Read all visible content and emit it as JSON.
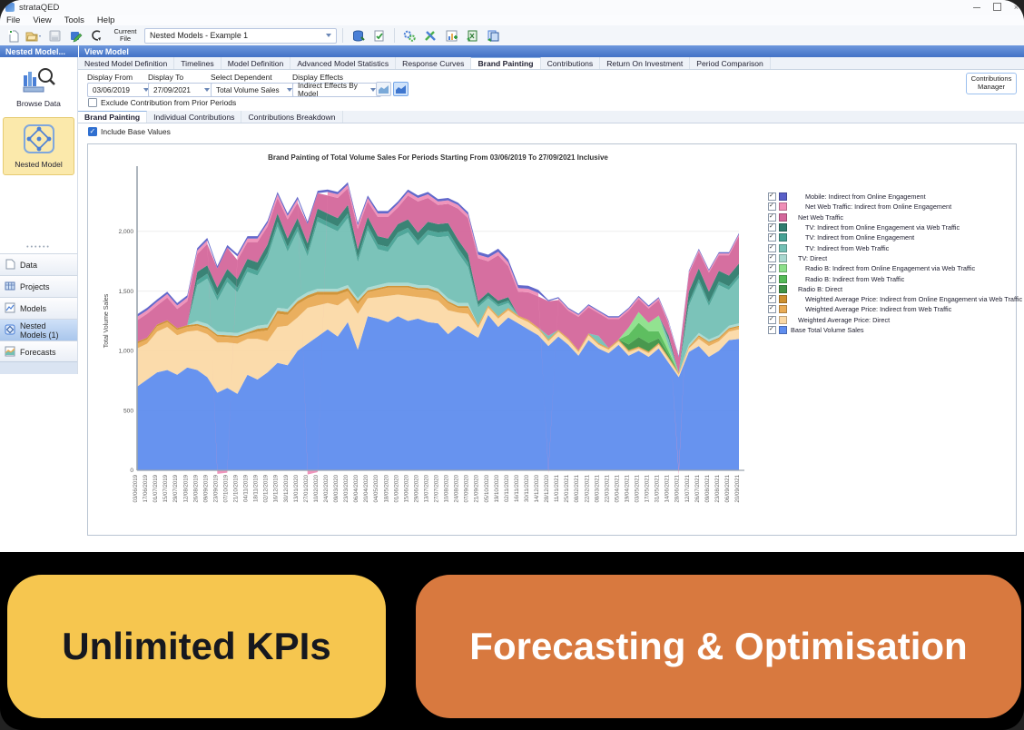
{
  "window": {
    "title": "strataQED",
    "menu": [
      "File",
      "View",
      "Tools",
      "Help"
    ]
  },
  "toolbar": {
    "current_file_label": "Current File",
    "file_combo": "Nested Models - Example 1"
  },
  "captions": {
    "left": "Nested Model...",
    "right": "View Model"
  },
  "sidebar": {
    "tools": [
      {
        "label": "Browse Data",
        "icon": "browse-data",
        "selected": false
      },
      {
        "label": "Nested Model",
        "icon": "nested-model",
        "selected": true
      }
    ],
    "nav": [
      {
        "label": "Data",
        "icon": "doc",
        "selected": false
      },
      {
        "label": "Projects",
        "icon": "grid",
        "selected": false
      },
      {
        "label": "Models",
        "icon": "chart",
        "selected": false
      },
      {
        "label": "Nested Models (1)",
        "icon": "nested",
        "selected": true
      },
      {
        "label": "Forecasts",
        "icon": "forecast",
        "selected": false
      }
    ]
  },
  "tabs": {
    "items": [
      "Nested Model Definition",
      "Timelines",
      "Model Definition",
      "Advanced Model Statistics",
      "Response Curves",
      "Brand Painting",
      "Contributions",
      "Return On Investment",
      "Period Comparison"
    ],
    "active": "Brand Painting"
  },
  "controls": {
    "display_from": {
      "label": "Display From",
      "value": "03/06/2019"
    },
    "display_to": {
      "label": "Display To",
      "value": "27/09/2021"
    },
    "select_dependent": {
      "label": "Select Dependent",
      "value": "Total Volume Sales"
    },
    "display_effects": {
      "label": "Display Effects",
      "value": "Indirect Effects By Model"
    },
    "exclude_label": "Exclude Contribution from Prior Periods",
    "manager_label": "Contributions Manager"
  },
  "subtabs": {
    "items": [
      "Brand Painting",
      "Individual Contributions",
      "Contributions Breakdown"
    ],
    "active": "Brand Painting"
  },
  "include_base_label": "Include Base Values",
  "chart_data": {
    "type": "area",
    "stacked": true,
    "title": "Brand Painting of Total Volume Sales For Periods Starting From 03/06/2019 To 27/09/2021 Inclusive",
    "ylabel": "Total Volume Sales",
    "ylim": [
      0,
      2500
    ],
    "yticks": [
      {
        "v": 0,
        "label": "0"
      },
      {
        "v": 500,
        "label": "500"
      },
      {
        "v": 1000,
        "label": "1,000"
      },
      {
        "v": 1500,
        "label": "1,500"
      },
      {
        "v": 2000,
        "label": "2,000"
      }
    ],
    "grid": true,
    "legend_position": "right",
    "x": [
      "03/06/2019",
      "17/06/2019",
      "01/07/2019",
      "15/07/2019",
      "29/07/2019",
      "12/08/2019",
      "26/08/2019",
      "09/09/2019",
      "23/09/2019",
      "07/10/2019",
      "21/10/2019",
      "04/11/2019",
      "18/11/2019",
      "02/12/2019",
      "16/12/2019",
      "30/12/2019",
      "13/01/2020",
      "27/01/2020",
      "10/02/2020",
      "24/02/2020",
      "09/03/2020",
      "23/03/2020",
      "06/04/2020",
      "20/04/2020",
      "04/05/2020",
      "18/05/2020",
      "01/06/2020",
      "15/06/2020",
      "29/06/2020",
      "13/07/2020",
      "27/07/2020",
      "10/08/2020",
      "24/08/2020",
      "07/09/2020",
      "21/09/2020",
      "05/10/2020",
      "19/10/2020",
      "02/11/2020",
      "16/11/2020",
      "30/11/2020",
      "14/12/2020",
      "28/12/2020",
      "11/01/2021",
      "25/01/2021",
      "08/02/2021",
      "22/02/2021",
      "08/03/2021",
      "22/03/2021",
      "05/04/2021",
      "19/04/2021",
      "03/05/2021",
      "17/05/2021",
      "31/05/2021",
      "14/06/2021",
      "28/06/2021",
      "12/07/2021",
      "26/07/2021",
      "09/08/2021",
      "23/08/2021",
      "06/09/2021",
      "20/09/2021"
    ],
    "series": [
      {
        "key": "base",
        "name": "Base Total Volume Sales",
        "color": "#5f8dee",
        "values": [
          700,
          760,
          820,
          840,
          800,
          860,
          840,
          780,
          650,
          690,
          640,
          800,
          760,
          820,
          900,
          880,
          1000,
          1060,
          1120,
          1180,
          1120,
          1240,
          1010,
          1290,
          1270,
          1240,
          1290,
          1250,
          1270,
          1240,
          1230,
          1140,
          1210,
          1160,
          1110,
          1300,
          1200,
          1280,
          1230,
          1180,
          1130,
          1040,
          1120,
          1050,
          960,
          1090,
          1020,
          980,
          1050,
          960,
          1000,
          950,
          1020,
          900,
          780,
          990,
          1040,
          950,
          1000,
          1090,
          1100
        ]
      },
      {
        "key": "wap_direct",
        "name": "Weighted Average Price: Direct",
        "color": "#fbd9a6",
        "values": [
          320,
          300,
          340,
          360,
          330,
          300,
          330,
          360,
          420,
          380,
          420,
          300,
          340,
          260,
          300,
          330,
          280,
          300,
          260,
          220,
          260,
          200,
          300,
          150,
          180,
          220,
          180,
          210,
          180,
          200,
          190,
          200,
          110,
          150,
          80,
          60,
          70,
          60,
          50,
          60,
          50,
          40,
          40,
          40,
          30,
          40,
          30,
          30,
          30,
          30,
          20,
          30,
          30,
          30,
          20,
          30,
          60,
          90,
          80,
          70,
          80
        ]
      },
      {
        "key": "wap_web",
        "name": "Weighted Average Price: Indirect from Web Traffic",
        "color": "#e9ab55",
        "values": [
          40,
          35,
          45,
          40,
          45,
          40,
          40,
          45,
          50,
          45,
          50,
          40,
          60,
          90,
          110,
          90,
          110,
          80,
          90,
          70,
          90,
          60,
          80,
          50,
          60,
          70,
          60,
          70,
          60,
          70,
          60,
          60,
          40,
          50,
          20,
          15,
          15,
          15,
          10,
          15,
          10,
          10,
          10,
          10,
          10,
          10,
          10,
          10,
          10,
          10,
          10,
          10,
          10,
          10,
          10,
          10,
          20,
          25,
          20,
          20,
          20
        ]
      },
      {
        "key": "wap_oe_web",
        "name": "Weighted Average Price: Indirect from Online Engagement via Web Traffic",
        "color": "#cd8f2f",
        "values": [
          15,
          15,
          15,
          15,
          15,
          15,
          15,
          15,
          15,
          15,
          15,
          15,
          25,
          25,
          25,
          25,
          25,
          25,
          25,
          25,
          25,
          25,
          25,
          15,
          15,
          15,
          15,
          15,
          15,
          15,
          15,
          15,
          15,
          15,
          5,
          5,
          5,
          5,
          5,
          5,
          5,
          5,
          5,
          5,
          5,
          5,
          5,
          5,
          5,
          5,
          5,
          5,
          5,
          5,
          5,
          5,
          10,
          10,
          10,
          10,
          10
        ]
      },
      {
        "key": "radio_direct",
        "name": "Radio B: Direct",
        "color": "#3f9245",
        "values": [
          0,
          0,
          0,
          0,
          0,
          0,
          0,
          0,
          0,
          0,
          0,
          0,
          0,
          0,
          0,
          0,
          0,
          0,
          0,
          0,
          0,
          0,
          0,
          0,
          0,
          0,
          0,
          0,
          0,
          0,
          0,
          0,
          0,
          0,
          0,
          0,
          0,
          0,
          0,
          0,
          0,
          0,
          0,
          0,
          0,
          0,
          0,
          0,
          0,
          50,
          80,
          70,
          40,
          20,
          0,
          0,
          0,
          0,
          0,
          0,
          0
        ]
      },
      {
        "key": "radio_web",
        "name": "Radio B: Indirect from Web Traffic",
        "color": "#55bb57",
        "values": [
          0,
          0,
          0,
          0,
          0,
          0,
          0,
          0,
          0,
          0,
          0,
          0,
          0,
          0,
          0,
          0,
          0,
          0,
          0,
          0,
          0,
          0,
          0,
          0,
          0,
          0,
          0,
          0,
          0,
          0,
          0,
          0,
          0,
          0,
          0,
          0,
          0,
          0,
          0,
          0,
          0,
          0,
          0,
          0,
          0,
          0,
          0,
          0,
          0,
          80,
          120,
          100,
          60,
          30,
          0,
          0,
          0,
          0,
          0,
          0,
          0
        ]
      },
      {
        "key": "radio_oe_web",
        "name": "Radio B: Indirect from Online Engagement via Web Traffic",
        "color": "#8ce08a",
        "values": [
          0,
          0,
          0,
          0,
          0,
          0,
          0,
          0,
          0,
          0,
          0,
          0,
          0,
          0,
          0,
          0,
          0,
          0,
          0,
          0,
          0,
          0,
          0,
          0,
          0,
          0,
          0,
          0,
          0,
          0,
          0,
          0,
          0,
          0,
          0,
          0,
          0,
          0,
          0,
          0,
          0,
          0,
          0,
          0,
          0,
          0,
          0,
          0,
          0,
          60,
          90,
          70,
          130,
          40,
          0,
          0,
          0,
          0,
          0,
          0,
          0
        ]
      },
      {
        "key": "tv_direct",
        "name": "TV: Direct",
        "color": "#a9d8d0",
        "values": [
          0,
          0,
          0,
          0,
          0,
          0,
          25,
          25,
          25,
          25,
          25,
          25,
          25,
          25,
          25,
          25,
          25,
          25,
          25,
          25,
          25,
          25,
          25,
          25,
          25,
          25,
          25,
          25,
          25,
          25,
          25,
          25,
          25,
          25,
          0,
          0,
          0,
          0,
          0,
          0,
          0,
          0,
          0,
          0,
          0,
          0,
          0,
          0,
          0,
          0,
          0,
          0,
          0,
          0,
          0,
          20,
          20,
          20,
          20,
          20,
          20
        ]
      },
      {
        "key": "tv_web",
        "name": "TV: Indirect from Web Traffic",
        "color": "#74c0b5",
        "values": [
          0,
          0,
          0,
          0,
          0,
          0,
          300,
          380,
          260,
          420,
          340,
          480,
          420,
          560,
          680,
          480,
          560,
          300,
          560,
          520,
          480,
          560,
          300,
          480,
          300,
          260,
          380,
          420,
          330,
          420,
          430,
          520,
          420,
          300,
          150,
          60,
          80,
          40,
          0,
          0,
          0,
          30,
          0,
          0,
          0,
          0,
          60,
          0,
          0,
          0,
          0,
          0,
          0,
          60,
          0,
          320,
          420,
          280,
          420,
          300,
          380
        ]
      },
      {
        "key": "tv_oe",
        "name": "TV: Indirect from Online Engagement",
        "color": "#47a295",
        "values": [
          0,
          0,
          0,
          0,
          0,
          0,
          40,
          40,
          40,
          40,
          40,
          40,
          40,
          40,
          40,
          40,
          40,
          40,
          40,
          40,
          40,
          40,
          40,
          40,
          40,
          40,
          40,
          40,
          40,
          40,
          40,
          40,
          40,
          40,
          20,
          20,
          20,
          20,
          0,
          0,
          0,
          0,
          0,
          0,
          0,
          0,
          0,
          0,
          0,
          0,
          0,
          0,
          0,
          0,
          0,
          30,
          30,
          30,
          30,
          30,
          30
        ]
      },
      {
        "key": "tv_oe_web",
        "name": "TV: Indirect from Online Engagement via Web Traffic",
        "color": "#2f7c6e",
        "values": [
          0,
          0,
          0,
          0,
          0,
          0,
          70,
          70,
          70,
          70,
          70,
          70,
          70,
          70,
          70,
          70,
          70,
          70,
          70,
          70,
          70,
          70,
          70,
          70,
          70,
          70,
          70,
          70,
          70,
          70,
          70,
          70,
          70,
          70,
          30,
          30,
          30,
          30,
          0,
          0,
          0,
          0,
          0,
          0,
          0,
          0,
          0,
          0,
          0,
          0,
          0,
          0,
          0,
          30,
          0,
          90,
          90,
          90,
          90,
          90,
          90
        ]
      },
      {
        "key": "net_web",
        "name": "Net Web Traffic",
        "color": "#d4679b",
        "values": [
          180,
          200,
          160,
          190,
          160,
          200,
          150,
          180,
          160,
          180,
          160,
          140,
          170,
          150,
          130,
          160,
          130,
          160,
          130,
          150,
          170,
          140,
          170,
          130,
          160,
          180,
          140,
          200,
          260,
          200,
          160,
          160,
          260,
          300,
          360,
          260,
          380,
          260,
          200,
          230,
          260,
          290,
          250,
          230,
          280,
          220,
          190,
          240,
          170,
          140,
          110,
          120,
          130,
          100,
          130,
          150,
          140,
          160,
          130,
          170,
          230
        ]
      },
      {
        "key": "net_web_oe",
        "name": "Net Web Traffic: Indirect from Online Engagement",
        "color": "#ef8eb7",
        "values": [
          30,
          30,
          30,
          30,
          30,
          30,
          30,
          30,
          -30,
          -20,
          30,
          30,
          30,
          30,
          30,
          30,
          30,
          -35,
          -15,
          30,
          30,
          30,
          30,
          30,
          30,
          30,
          30,
          30,
          30,
          30,
          30,
          30,
          30,
          30,
          30,
          30,
          30,
          30,
          30,
          30,
          30,
          -25,
          15,
          15,
          15,
          15,
          15,
          15,
          15,
          15,
          15,
          15,
          15,
          15,
          -40,
          15,
          15,
          15,
          15,
          15,
          15
        ]
      },
      {
        "key": "mobile",
        "name": "Mobile: Indirect from Online Engagement",
        "color": "#5a60c8",
        "values": [
          20,
          20,
          20,
          20,
          20,
          20,
          20,
          20,
          20,
          20,
          20,
          20,
          20,
          20,
          20,
          20,
          20,
          20,
          20,
          20,
          20,
          20,
          20,
          20,
          20,
          20,
          20,
          20,
          20,
          20,
          20,
          20,
          20,
          20,
          25,
          25,
          25,
          25,
          25,
          25,
          25,
          10,
          10,
          10,
          10,
          10,
          10,
          10,
          10,
          10,
          10,
          10,
          10,
          10,
          10,
          10,
          10,
          10,
          10,
          10,
          10
        ]
      }
    ],
    "legend": [
      {
        "key": "mobile",
        "indent": 2
      },
      {
        "key": "net_web_oe",
        "indent": 2
      },
      {
        "key": "net_web",
        "indent": 1
      },
      {
        "key": "tv_oe_web",
        "indent": 2
      },
      {
        "key": "tv_oe",
        "indent": 2
      },
      {
        "key": "tv_web",
        "indent": 2
      },
      {
        "key": "tv_direct",
        "indent": 1
      },
      {
        "key": "radio_oe_web",
        "indent": 2
      },
      {
        "key": "radio_web",
        "indent": 2
      },
      {
        "key": "radio_direct",
        "indent": 1
      },
      {
        "key": "wap_oe_web",
        "indent": 2
      },
      {
        "key": "wap_web",
        "indent": 2
      },
      {
        "key": "wap_direct",
        "indent": 1
      },
      {
        "key": "base",
        "indent": 0
      }
    ]
  },
  "banners": [
    {
      "label": "Unlimited KPIs",
      "bg": "#f6c64f",
      "fg": "#16181f"
    },
    {
      "label": "Forecasting & Optimisation",
      "bg": "#d8793f",
      "fg": "#ffffff"
    }
  ]
}
